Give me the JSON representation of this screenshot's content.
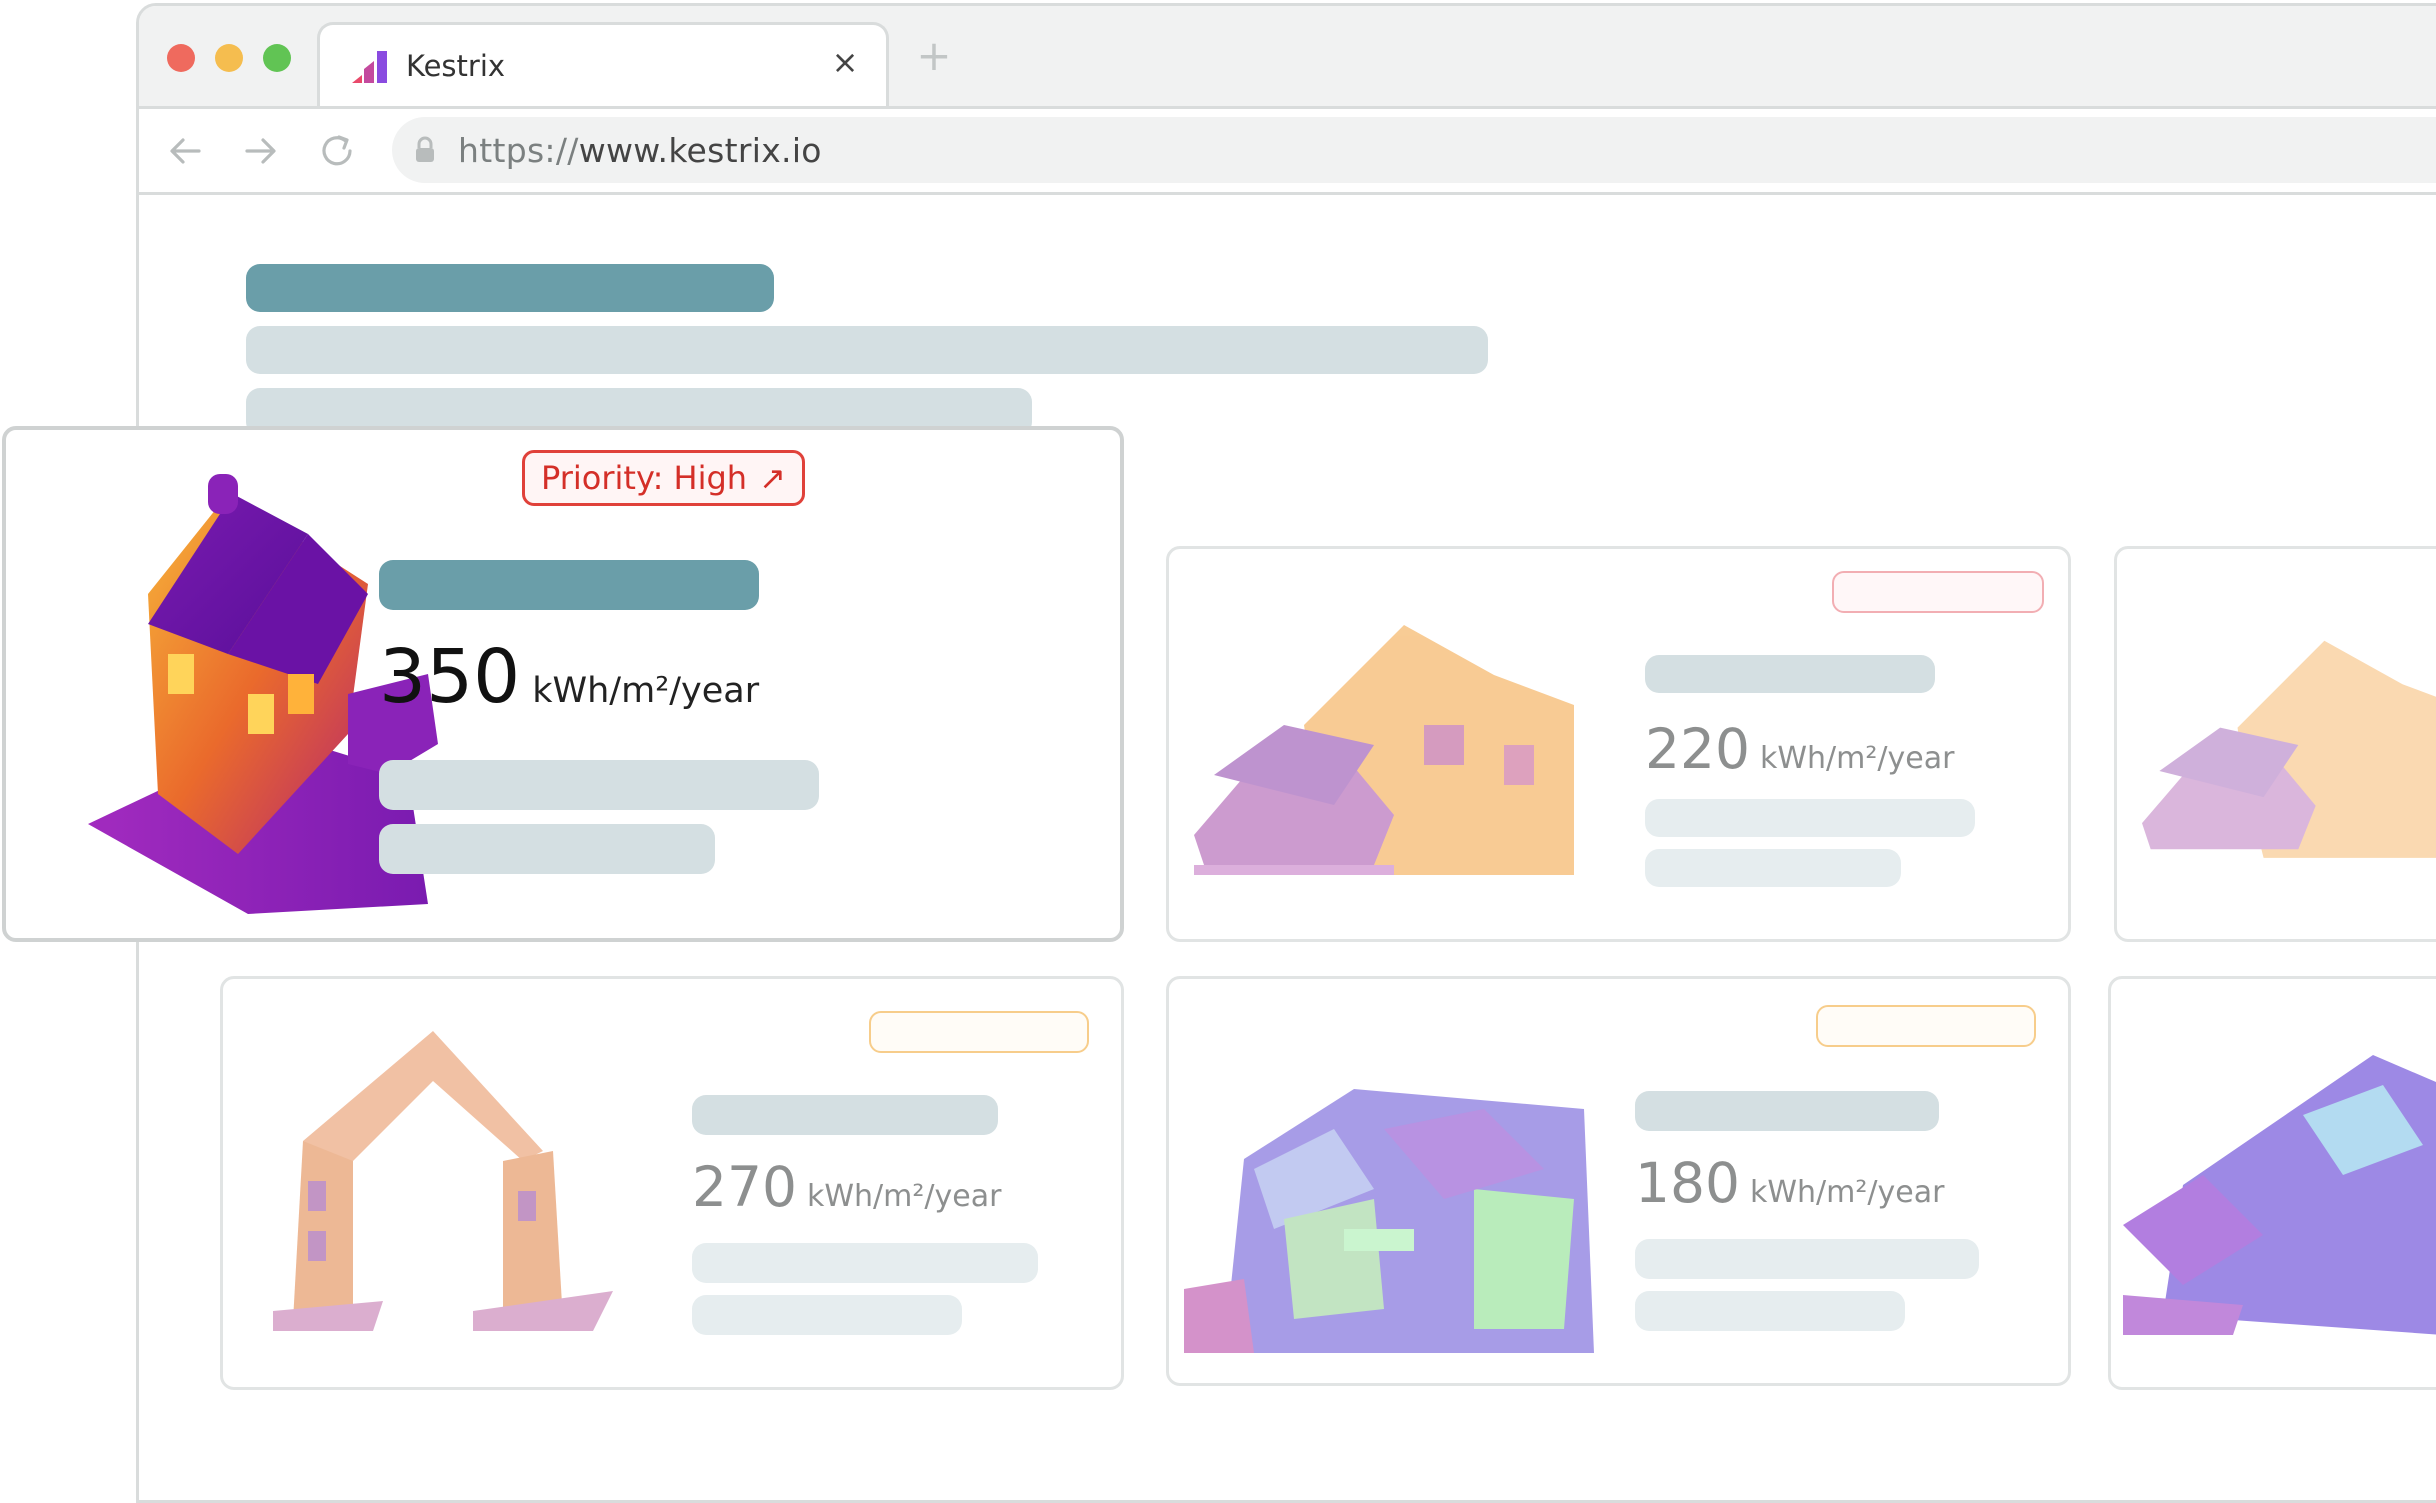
{
  "browser": {
    "tab_title": "Kestrix",
    "tab_close_glyph": "×",
    "new_tab_glyph": "+",
    "url_scheme": "https://",
    "url_host": "www.kestrix.io",
    "icons": [
      "back-arrow-icon",
      "forward-arrow-icon",
      "reload-icon",
      "lock-icon"
    ]
  },
  "focus_card": {
    "priority_label": "Priority: High",
    "priority_arrow": "↗",
    "value": "350",
    "unit": "kWh/m²/year"
  },
  "cards": [
    {
      "value": "220",
      "unit": "kWh/m²/year"
    },
    {
      "value": "270",
      "unit": "kWh/m²/year"
    },
    {
      "value": "180",
      "unit": "kWh/m²/year"
    }
  ],
  "colors": {
    "skeleton_teal": "#6a9ea9",
    "skeleton_grey": "#d4dfe2",
    "priority_high": "#e0413a",
    "priority_pink": "#f2aeb3",
    "priority_amber": "#f7cd8b"
  }
}
